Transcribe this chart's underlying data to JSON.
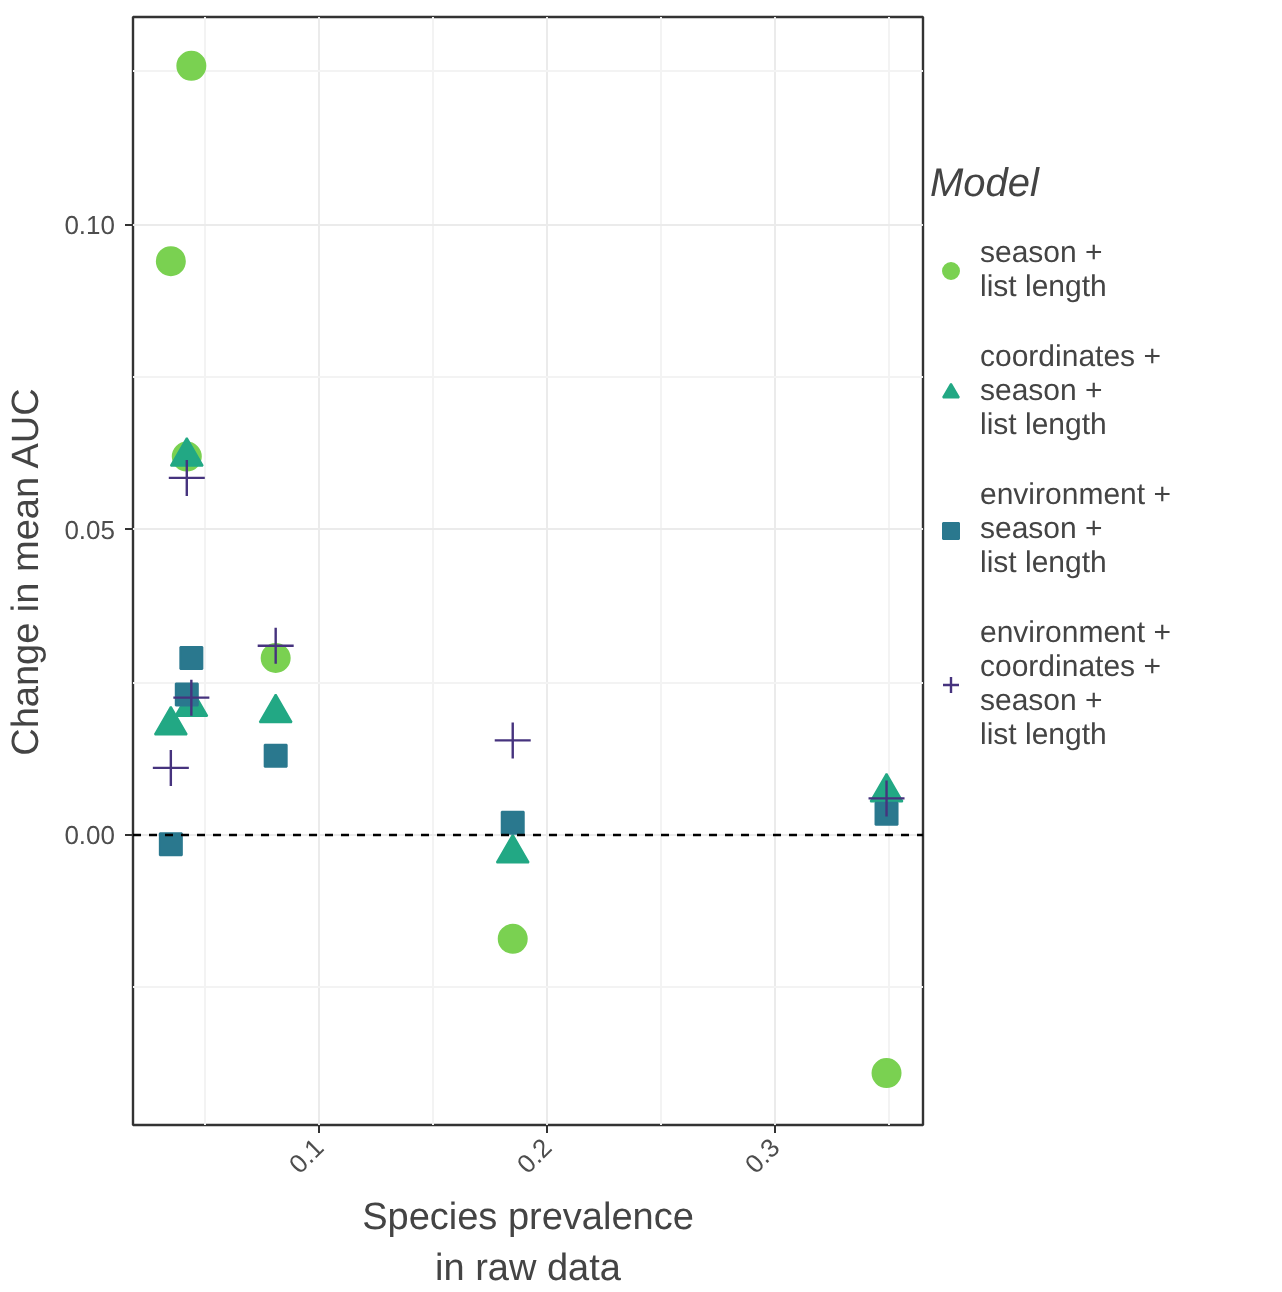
{
  "chart_data": {
    "type": "scatter",
    "xlabel": "Species prevalence\nin raw data",
    "ylabel": "Change in mean AUC",
    "legend_title": "Model",
    "legend": "right",
    "grid": true,
    "xlim": [
      0.0184,
      0.365
    ],
    "ylim": [
      -0.0475,
      0.134
    ],
    "xticks": [
      0.1,
      0.2,
      0.3
    ],
    "yticks": [
      {
        "value": 0,
        "label": "0.00"
      },
      {
        "value": 0.05,
        "label": "0.05"
      },
      {
        "value": 0.1,
        "label": "0.10"
      }
    ],
    "ref_lines": [
      {
        "axis": "y",
        "value": 0,
        "label": null,
        "color": "#000000",
        "line_style": "dashed"
      }
    ],
    "series": [
      {
        "name": "season +\nlist length",
        "color": "#7ad151",
        "marker": "circle",
        "x": [
          0.035,
          0.042,
          0.044,
          0.081,
          0.185,
          0.349
        ],
        "values": [
          0.094,
          0.062,
          0.126,
          0.029,
          -0.017,
          -0.039
        ]
      },
      {
        "name": "coordinates +\nseason +\nlist length",
        "color": "#22a884",
        "marker": "triangle",
        "x": [
          0.035,
          0.042,
          0.044,
          0.081,
          0.185,
          0.349
        ],
        "values": [
          0.018,
          0.062,
          0.021,
          0.02,
          -0.003,
          0.007
        ]
      },
      {
        "name": "environment +\nseason +\nlist length",
        "color": "#2a788e",
        "marker": "square",
        "x": [
          0.035,
          0.042,
          0.044,
          0.081,
          0.185,
          0.349
        ],
        "values": [
          -0.0015,
          0.023,
          0.029,
          0.013,
          0.002,
          0.0035
        ]
      },
      {
        "name": "environment +\ncoordinates +\nseason +\nlist length",
        "color": "#46337e",
        "marker": "cross",
        "x": [
          0.035,
          0.042,
          0.044,
          0.081,
          0.185,
          0.349
        ],
        "values": [
          0.011,
          0.0585,
          0.0225,
          0.031,
          0.0155,
          0.006
        ]
      }
    ]
  }
}
